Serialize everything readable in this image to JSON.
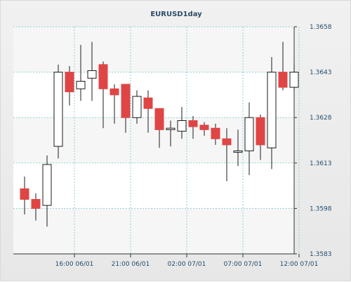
{
  "chart_data": {
    "type": "candlestick",
    "title": "EURUSD1day",
    "y_ticks": [
      "1.3658",
      "1.3643",
      "1.3628",
      "1.3613",
      "1.3598",
      "1.3583"
    ],
    "ylim": [
      1.3583,
      1.3658
    ],
    "x_ticks": [
      {
        "label": "16:00 06/01",
        "index": 4.5
      },
      {
        "label": "21:00 06/01",
        "index": 9.5
      },
      {
        "label": "02:00 07/01",
        "index": 14.5
      },
      {
        "label": "07:00 07/01",
        "index": 19.5
      },
      {
        "label": "12:00 07/01",
        "index": 24.5
      }
    ],
    "grid": true,
    "candles": [
      {
        "open": 1.36045,
        "high": 1.36085,
        "low": 1.3596,
        "close": 1.3601
      },
      {
        "open": 1.3601,
        "high": 1.3603,
        "low": 1.3594,
        "close": 1.3598
      },
      {
        "open": 1.3599,
        "high": 1.36155,
        "low": 1.3592,
        "close": 1.36125
      },
      {
        "open": 1.36185,
        "high": 1.36455,
        "low": 1.36145,
        "close": 1.3643
      },
      {
        "open": 1.3643,
        "high": 1.3645,
        "low": 1.3632,
        "close": 1.36365
      },
      {
        "open": 1.36375,
        "high": 1.3652,
        "low": 1.36335,
        "close": 1.364
      },
      {
        "open": 1.3641,
        "high": 1.3653,
        "low": 1.36335,
        "close": 1.36435
      },
      {
        "open": 1.36455,
        "high": 1.36465,
        "low": 1.36245,
        "close": 1.36375
      },
      {
        "open": 1.36375,
        "high": 1.3639,
        "low": 1.3626,
        "close": 1.36355
      },
      {
        "open": 1.3639,
        "high": 1.3639,
        "low": 1.3623,
        "close": 1.3628
      },
      {
        "open": 1.3628,
        "high": 1.3637,
        "low": 1.3626,
        "close": 1.3635
      },
      {
        "open": 1.36345,
        "high": 1.3637,
        "low": 1.3623,
        "close": 1.3631
      },
      {
        "open": 1.3631,
        "high": 1.3631,
        "low": 1.3618,
        "close": 1.3624
      },
      {
        "open": 1.3624,
        "high": 1.3627,
        "low": 1.36185,
        "close": 1.36245
      },
      {
        "open": 1.36235,
        "high": 1.36315,
        "low": 1.3621,
        "close": 1.3627
      },
      {
        "open": 1.3627,
        "high": 1.36285,
        "low": 1.3621,
        "close": 1.3625
      },
      {
        "open": 1.36255,
        "high": 1.36265,
        "low": 1.3622,
        "close": 1.3624
      },
      {
        "open": 1.36245,
        "high": 1.3626,
        "low": 1.3619,
        "close": 1.3621
      },
      {
        "open": 1.3621,
        "high": 1.36245,
        "low": 1.3607,
        "close": 1.3619
      },
      {
        "open": 1.3617,
        "high": 1.3624,
        "low": 1.3612,
        "close": 1.3617
      },
      {
        "open": 1.3617,
        "high": 1.3633,
        "low": 1.3609,
        "close": 1.3628
      },
      {
        "open": 1.3628,
        "high": 1.3629,
        "low": 1.3614,
        "close": 1.3619
      },
      {
        "open": 1.3618,
        "high": 1.3648,
        "low": 1.3611,
        "close": 1.3643
      },
      {
        "open": 1.3643,
        "high": 1.3653,
        "low": 1.3637,
        "close": 1.3638
      },
      {
        "open": 1.3638,
        "high": 1.3646,
        "low": 1.3637,
        "close": 1.3643
      }
    ],
    "colors": {
      "bearish_body": "#e04545",
      "bullish_body": "#ffffff",
      "outline": "#1c1c1c",
      "grid": "#93d0d2",
      "axis_text": "#254b6a",
      "title": "#2b4b67",
      "plot_band": "#ffffff",
      "plot_band_alt": "#f6f6f6"
    }
  }
}
